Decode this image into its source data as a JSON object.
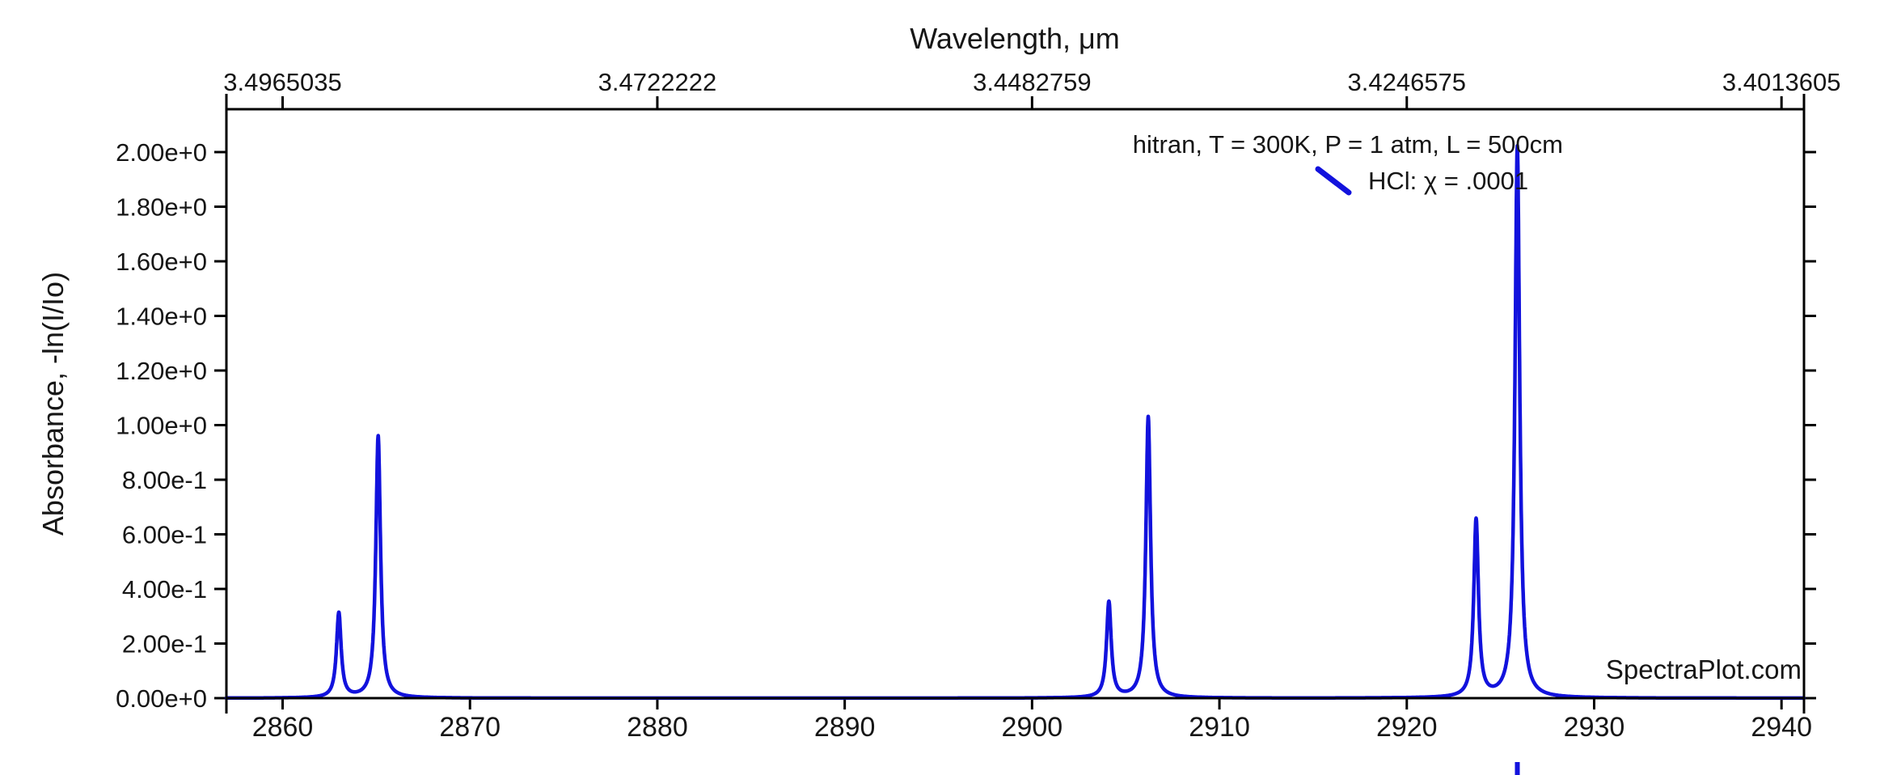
{
  "watermark": "SpectraPlot.com",
  "legend": {
    "condition_label": "hitran, T = 300K, P = 1 atm, L = 500cm",
    "series_label": "HCl: χ = .0001",
    "series_color": "#1212dd"
  },
  "chart_data": {
    "type": "line",
    "title": "",
    "top_axis_label": "Wavelength, μm",
    "ylabel": "Absorbance, -ln(I/Io)",
    "xlabel": "",
    "xlim": [
      2857.0,
      2941.2
    ],
    "ylim": [
      0,
      2.157
    ],
    "grid": false,
    "legend_position": "top-right",
    "x_ticks_bottom": [
      2860,
      2870,
      2880,
      2890,
      2900,
      2910,
      2920,
      2930,
      2940
    ],
    "x_ticks_top": [
      {
        "position": 2860,
        "label": "3.4965035"
      },
      {
        "position": 2880,
        "label": "3.4722222"
      },
      {
        "position": 2900,
        "label": "3.4482759"
      },
      {
        "position": 2920,
        "label": "3.4246575"
      },
      {
        "position": 2940,
        "label": "3.4013605"
      }
    ],
    "y_ticks": [
      {
        "value": 0.0,
        "label": "0.00e+0"
      },
      {
        "value": 0.2,
        "label": "2.00e-1"
      },
      {
        "value": 0.4,
        "label": "4.00e-1"
      },
      {
        "value": 0.6,
        "label": "6.00e-1"
      },
      {
        "value": 0.8,
        "label": "8.00e-1"
      },
      {
        "value": 1.0,
        "label": "1.00e+0"
      },
      {
        "value": 1.2,
        "label": "1.20e+0"
      },
      {
        "value": 1.4,
        "label": "1.40e+0"
      },
      {
        "value": 1.6,
        "label": "1.60e+0"
      },
      {
        "value": 1.8,
        "label": "1.80e+0"
      },
      {
        "value": 2.0,
        "label": "2.00e+0"
      }
    ],
    "series": [
      {
        "name": "HCl: χ = .0001",
        "color": "#1212dd",
        "line_shape": "lorentzian",
        "hwhm_cm1": 0.15,
        "peaks": [
          {
            "center": 2863.0,
            "height": 0.31
          },
          {
            "center": 2865.1,
            "height": 0.96
          },
          {
            "center": 2904.1,
            "height": 0.35
          },
          {
            "center": 2906.2,
            "height": 1.03
          },
          {
            "center": 2923.7,
            "height": 0.65
          },
          {
            "center": 2925.9,
            "height": 2.02
          }
        ]
      }
    ],
    "bottom_edge_fragment_x": 2925.9
  }
}
